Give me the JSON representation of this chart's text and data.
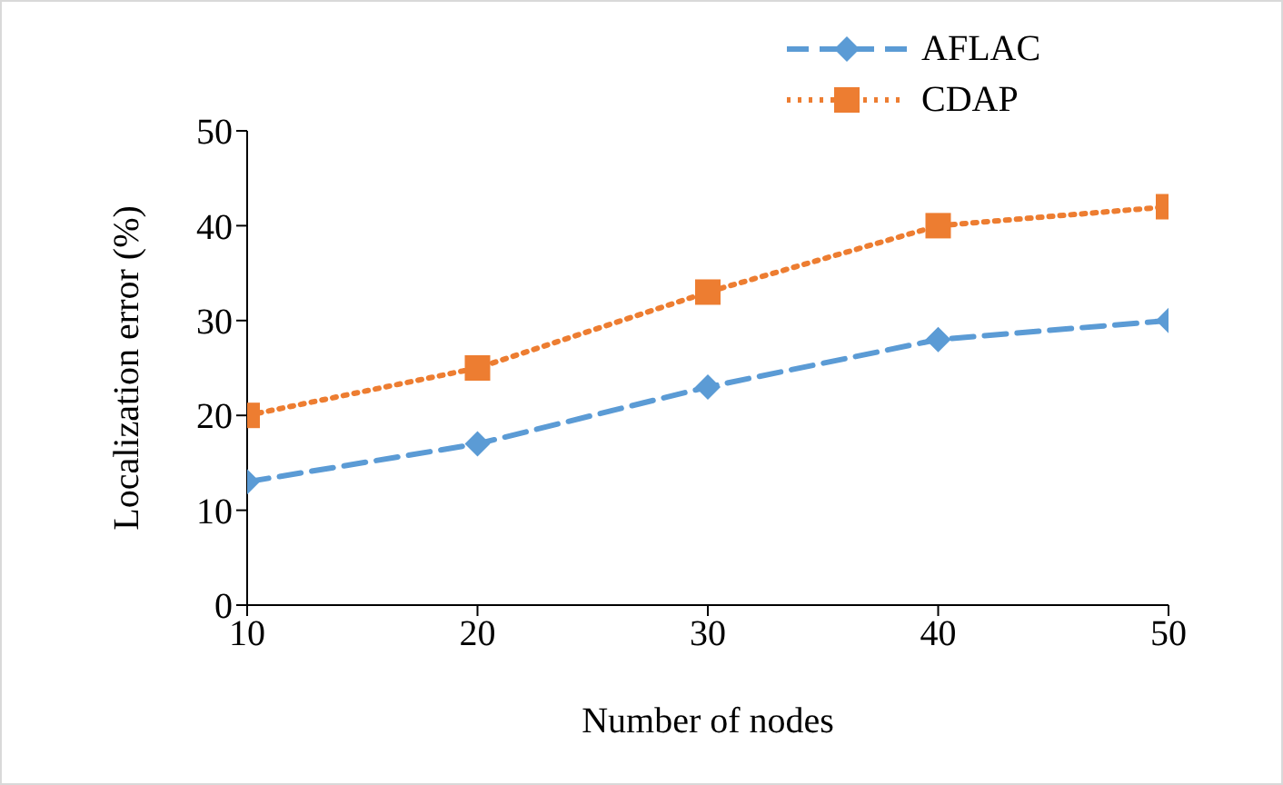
{
  "chart_data": {
    "type": "line",
    "xlabel": "Number of nodes",
    "ylabel": "Localization error (%)",
    "x": [
      10,
      20,
      30,
      40,
      50
    ],
    "xlim": [
      10,
      50
    ],
    "xticks": [
      10,
      20,
      30,
      40,
      50
    ],
    "ylim": [
      0,
      50
    ],
    "yticks": [
      0,
      10,
      20,
      30,
      40,
      50
    ],
    "grid": false,
    "legend": "top right",
    "series": [
      {
        "name": "AFLAC",
        "color": "#5b9bd5",
        "values": [
          13,
          17,
          23,
          28,
          30
        ],
        "marker": "diamond",
        "line_style": "dashed"
      },
      {
        "name": "CDAP",
        "color": "#ed7d31",
        "values": [
          20,
          25,
          33,
          40,
          42
        ],
        "marker": "square",
        "line_style": "dotted"
      }
    ]
  }
}
